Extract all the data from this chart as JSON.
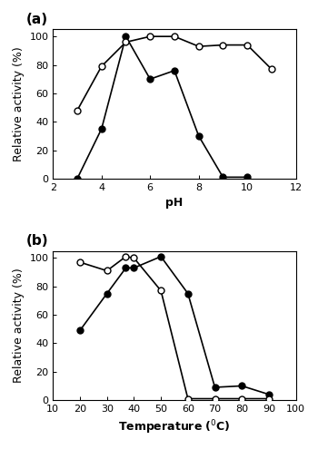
{
  "panel_a": {
    "xlabel": "pH",
    "ylabel": "Relative activity (%)",
    "xlim": [
      2,
      12
    ],
    "ylim": [
      0,
      105
    ],
    "xticks": [
      2,
      4,
      6,
      8,
      10,
      12
    ],
    "yticks": [
      0,
      20,
      40,
      60,
      80,
      100
    ],
    "label": "(a)",
    "filled_circles": {
      "x": [
        3,
        4,
        5,
        6,
        7,
        8,
        9,
        10
      ],
      "y": [
        0,
        35,
        100,
        70,
        76,
        30,
        1,
        1
      ]
    },
    "open_circles": {
      "x": [
        3,
        4,
        5,
        6,
        7,
        8,
        9,
        10,
        11
      ],
      "y": [
        48,
        79,
        96,
        100,
        100,
        93,
        94,
        94,
        77
      ]
    }
  },
  "panel_b": {
    "xlabel": "Temperature ($^{0}$C)",
    "ylabel": "Relative activity (%)",
    "xlim": [
      10,
      100
    ],
    "ylim": [
      0,
      105
    ],
    "xticks": [
      10,
      20,
      30,
      40,
      50,
      60,
      70,
      80,
      90,
      100
    ],
    "yticks": [
      0,
      20,
      40,
      60,
      80,
      100
    ],
    "label": "(b)",
    "filled_circles": {
      "x": [
        20,
        30,
        37,
        40,
        50,
        60,
        70,
        80,
        90
      ],
      "y": [
        49,
        75,
        93,
        93,
        101,
        75,
        9,
        10,
        4
      ]
    },
    "open_circles": {
      "x": [
        20,
        30,
        37,
        40,
        50,
        60,
        70,
        80,
        90
      ],
      "y": [
        97,
        91,
        101,
        100,
        77,
        1,
        1,
        1,
        1
      ]
    }
  },
  "line_color": "#000000",
  "marker_size": 5,
  "linewidth": 1.2,
  "font_size_label": 9,
  "font_size_tick": 8,
  "font_size_panel_label": 11,
  "figure_width": 3.5,
  "figure_height": 4.95
}
